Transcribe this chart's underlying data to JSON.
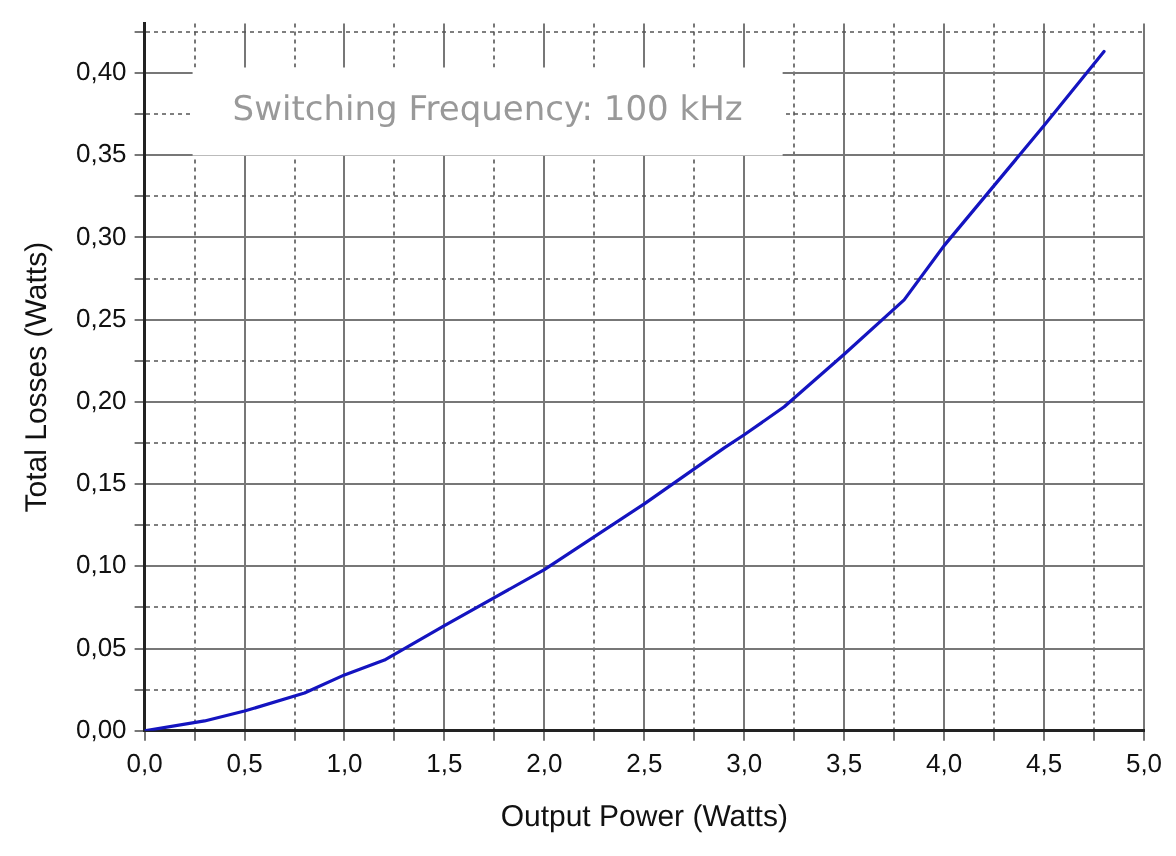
{
  "chart_data": {
    "type": "line",
    "xlabel": "Output Power (Watts)",
    "ylabel": "Total Losses (Watts)",
    "annotations": [
      "Switching Frequency: 100 kHz"
    ],
    "series": [
      {
        "color": "#1414c0",
        "x": [
          0,
          0.3,
          0.5,
          0.8,
          1.0,
          1.2,
          1.5,
          2.0,
          2.5,
          2.9,
          3.0,
          3.2,
          3.5,
          3.8,
          4.0,
          4.5,
          4.8
        ],
        "values": [
          0,
          0.006,
          0.012,
          0.023,
          0.034,
          0.043,
          0.064,
          0.098,
          0.138,
          0.172,
          0.18,
          0.197,
          0.229,
          0.262,
          0.295,
          0.368,
          0.413
        ]
      }
    ],
    "xlim": [
      0,
      5
    ],
    "xticks": [
      {
        "value": 0,
        "label": "0,0"
      },
      {
        "value": 0.25,
        "label": null
      },
      {
        "value": 0.5,
        "label": "0,5"
      },
      {
        "value": 0.75,
        "label": null
      },
      {
        "value": 1,
        "label": "1,0"
      },
      {
        "value": 1.25,
        "label": null
      },
      {
        "value": 1.5,
        "label": "1,5"
      },
      {
        "value": 1.75,
        "label": null
      },
      {
        "value": 2,
        "label": "2,0"
      },
      {
        "value": 2.25,
        "label": null
      },
      {
        "value": 2.5,
        "label": "2,5"
      },
      {
        "value": 2.75,
        "label": null
      },
      {
        "value": 3,
        "label": "3,0"
      },
      {
        "value": 3.25,
        "label": null
      },
      {
        "value": 3.5,
        "label": "3,5"
      },
      {
        "value": 3.75,
        "label": null
      },
      {
        "value": 4,
        "label": "4,0"
      },
      {
        "value": 4.25,
        "label": null
      },
      {
        "value": 4.5,
        "label": "4,5"
      },
      {
        "value": 4.75,
        "label": null
      },
      {
        "value": 5,
        "label": "5,0"
      }
    ],
    "ylim": [
      0,
      0.43
    ],
    "yticks": [
      {
        "value": 0,
        "label": "0,00"
      },
      {
        "value": 0.025,
        "label": null
      },
      {
        "value": 0.05,
        "label": "0,05"
      },
      {
        "value": 0.075,
        "label": null
      },
      {
        "value": 0.1,
        "label": "0,10"
      },
      {
        "value": 0.125,
        "label": null
      },
      {
        "value": 0.15,
        "label": "0,15"
      },
      {
        "value": 0.175,
        "label": null
      },
      {
        "value": 0.2,
        "label": "0,20"
      },
      {
        "value": 0.225,
        "label": null
      },
      {
        "value": 0.25,
        "label": "0,25"
      },
      {
        "value": 0.275,
        "label": null
      },
      {
        "value": 0.3,
        "label": "0,30"
      },
      {
        "value": 0.325,
        "label": null
      },
      {
        "value": 0.35,
        "label": "0,35"
      },
      {
        "value": 0.375,
        "label": null
      },
      {
        "value": 0.4,
        "label": "0,40"
      },
      {
        "value": 0.425,
        "label": null
      }
    ],
    "grid": true,
    "legend": false,
    "marker": "none",
    "line_style": "solid"
  }
}
